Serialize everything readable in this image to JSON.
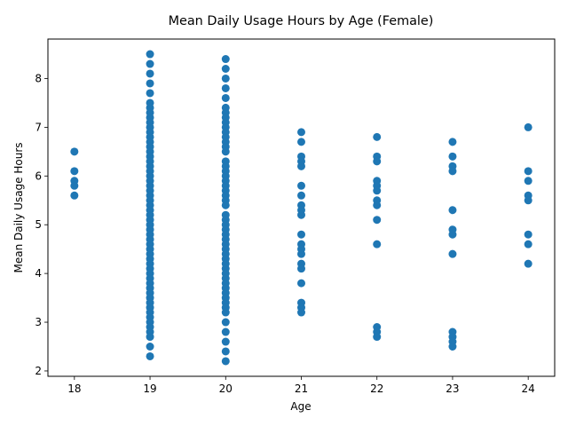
{
  "chart_data": {
    "type": "scatter",
    "title": "Mean Daily Usage Hours by Age (Female)",
    "xlabel": "Age",
    "ylabel": "Mean Daily Usage Hours",
    "xlim": [
      17.65,
      24.35
    ],
    "ylim": [
      1.89,
      8.81
    ],
    "xticks": [
      18,
      19,
      20,
      21,
      22,
      23,
      24
    ],
    "yticks": [
      2,
      3,
      4,
      5,
      6,
      7,
      8
    ],
    "grid": false,
    "marker_color": "#1f77b4",
    "points_by_age": {
      "18": [
        6.5,
        6.1,
        5.9,
        5.8,
        5.6
      ],
      "19": [
        8.5,
        8.3,
        8.1,
        7.9,
        7.7,
        7.5,
        7.4,
        7.3,
        7.2,
        7.1,
        7.0,
        6.9,
        6.8,
        6.7,
        6.6,
        6.5,
        6.4,
        6.3,
        6.2,
        6.1,
        6.0,
        5.9,
        5.8,
        5.7,
        5.6,
        5.5,
        5.4,
        5.3,
        5.2,
        5.1,
        5.0,
        4.9,
        4.8,
        4.7,
        4.6,
        4.5,
        4.4,
        4.3,
        4.2,
        4.1,
        4.0,
        3.9,
        3.8,
        3.7,
        3.6,
        3.5,
        3.4,
        3.3,
        3.2,
        3.1,
        3.0,
        2.9,
        2.8,
        2.7,
        2.5,
        2.3
      ],
      "20": [
        8.4,
        8.2,
        8.0,
        7.8,
        7.6,
        7.4,
        7.3,
        7.2,
        7.1,
        7.0,
        6.9,
        6.8,
        6.7,
        6.6,
        6.5,
        6.3,
        6.2,
        6.1,
        6.0,
        5.9,
        5.8,
        5.7,
        5.6,
        5.5,
        5.4,
        5.2,
        5.1,
        5.0,
        4.9,
        4.8,
        4.7,
        4.6,
        4.5,
        4.4,
        4.3,
        4.2,
        4.1,
        4.0,
        3.9,
        3.8,
        3.7,
        3.6,
        3.5,
        3.4,
        3.3,
        3.2,
        3.0,
        2.8,
        2.6,
        2.4,
        2.2
      ],
      "21": [
        6.9,
        6.7,
        6.4,
        6.3,
        6.2,
        5.8,
        5.6,
        5.4,
        5.3,
        5.2,
        4.8,
        4.6,
        4.5,
        4.4,
        4.2,
        4.1,
        3.8,
        3.4,
        3.3,
        3.2
      ],
      "22": [
        6.8,
        6.4,
        6.3,
        5.9,
        5.8,
        5.7,
        5.5,
        5.4,
        5.1,
        4.6,
        2.9,
        2.8,
        2.7
      ],
      "23": [
        6.7,
        6.4,
        6.2,
        6.1,
        5.3,
        4.9,
        4.8,
        4.4,
        2.8,
        2.7,
        2.6,
        2.5
      ],
      "24": [
        7.0,
        6.1,
        5.9,
        5.6,
        5.5,
        4.8,
        4.6,
        4.2
      ]
    }
  }
}
